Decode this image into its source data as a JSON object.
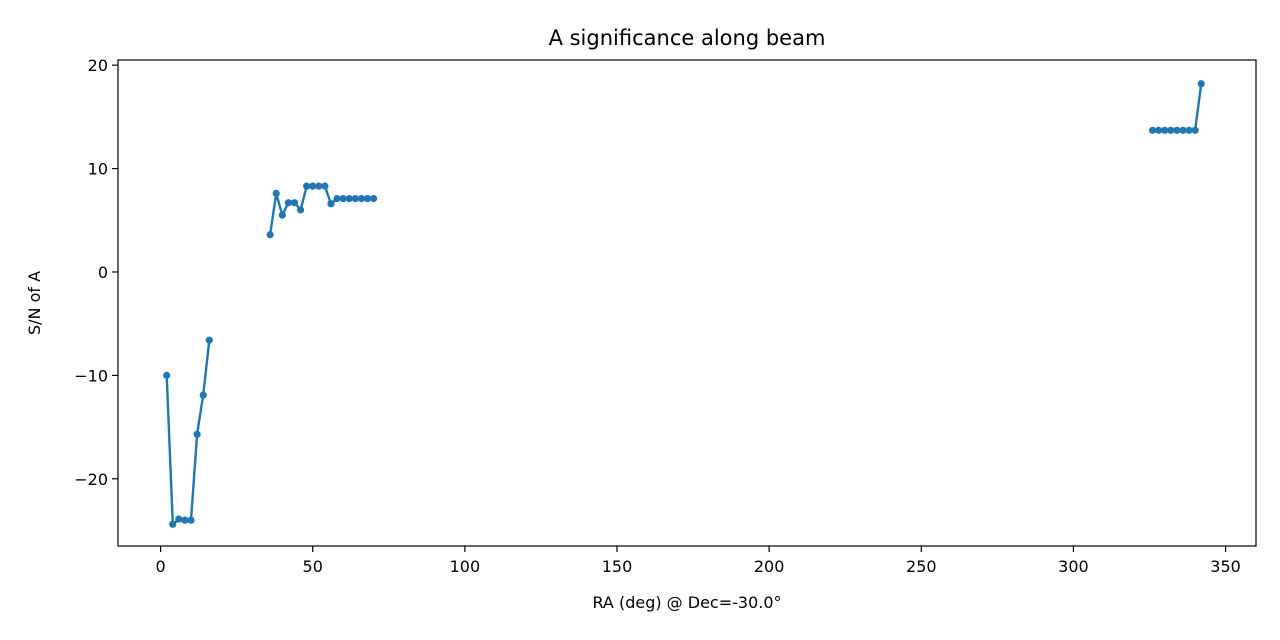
{
  "chart_data": {
    "type": "line",
    "title": "A significance along beam",
    "xlabel": "RA (deg) @ Dec=-30.0°",
    "ylabel": "S/N of A",
    "xlim": [
      -14,
      360
    ],
    "ylim": [
      -26.5,
      20.5
    ],
    "xticks": [
      0,
      50,
      100,
      150,
      200,
      250,
      300,
      350
    ],
    "yticks": [
      -20,
      -10,
      0,
      10,
      20
    ],
    "xtick_labels": [
      "0",
      "50",
      "100",
      "150",
      "200",
      "250",
      "300",
      "350"
    ],
    "ytick_labels": [
      "−20",
      "−10",
      "0",
      "10",
      "20"
    ],
    "grid": false,
    "marker": "dot",
    "color": "#1f77b4",
    "segments": [
      {
        "x": [
          2,
          4,
          6,
          8,
          10,
          12,
          14,
          16
        ],
        "y": [
          -10.0,
          -24.4,
          -23.9,
          -24.0,
          -24.0,
          -15.7,
          -11.9,
          -6.6
        ]
      },
      {
        "x": [
          36,
          38,
          40,
          42,
          44,
          46,
          48,
          50,
          52,
          54,
          56,
          58,
          60,
          62,
          64,
          66,
          68,
          70
        ],
        "y": [
          3.6,
          7.6,
          5.5,
          6.7,
          6.7,
          6.0,
          8.3,
          8.3,
          8.3,
          8.3,
          6.6,
          7.1,
          7.1,
          7.1,
          7.1,
          7.1,
          7.1,
          7.1
        ]
      },
      {
        "x": [
          326,
          328,
          330,
          332,
          334,
          336,
          338,
          340,
          342
        ],
        "y": [
          13.7,
          13.7,
          13.7,
          13.7,
          13.7,
          13.7,
          13.7,
          13.7,
          18.2
        ]
      }
    ]
  }
}
